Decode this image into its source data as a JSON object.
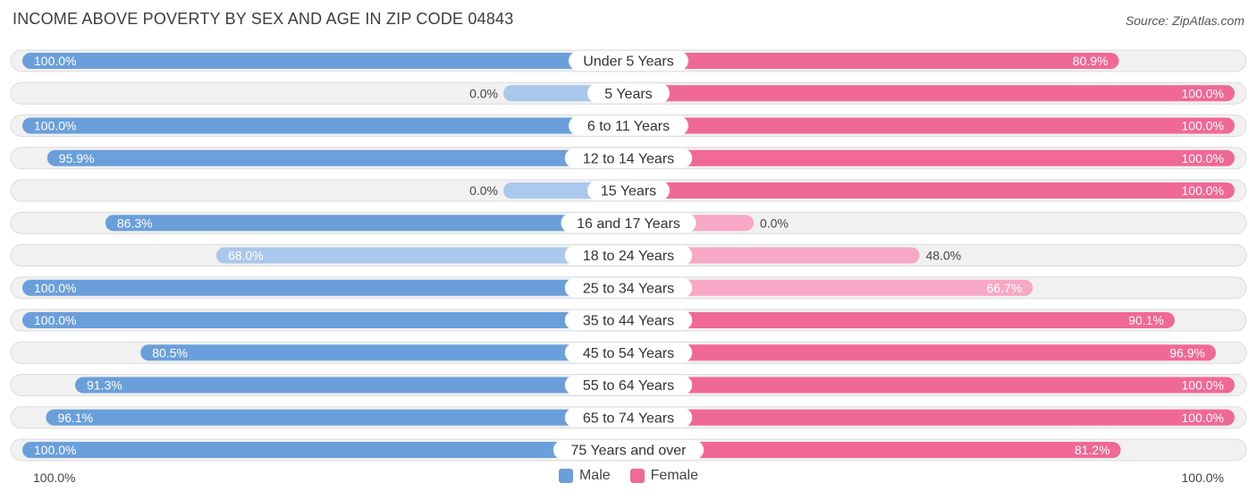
{
  "chart_data": {
    "type": "bar",
    "orientation": "diverging-horizontal",
    "title": "INCOME ABOVE POVERTY BY SEX AND AGE IN ZIP CODE 04843",
    "source": "Source: ZipAtlas.com",
    "categories": [
      "Under 5 Years",
      "5 Years",
      "6 to 11 Years",
      "12 to 14 Years",
      "15 Years",
      "16 and 17 Years",
      "18 to 24 Years",
      "25 to 34 Years",
      "35 to 44 Years",
      "45 to 54 Years",
      "55 to 64 Years",
      "65 to 74 Years",
      "75 Years and over"
    ],
    "series": [
      {
        "name": "Male",
        "values": [
          100.0,
          0.0,
          100.0,
          95.9,
          0.0,
          86.3,
          68.0,
          100.0,
          100.0,
          80.5,
          91.3,
          96.1,
          100.0
        ],
        "labels": [
          "100.0%",
          "0.0%",
          "100.0%",
          "95.9%",
          "0.0%",
          "86.3%",
          "68.0%",
          "100.0%",
          "100.0%",
          "80.5%",
          "91.3%",
          "96.1%",
          "100.0%"
        ]
      },
      {
        "name": "Female",
        "values": [
          80.9,
          100.0,
          100.0,
          100.0,
          100.0,
          0.0,
          48.0,
          66.7,
          90.1,
          96.9,
          100.0,
          100.0,
          81.2
        ],
        "labels": [
          "80.9%",
          "100.0%",
          "100.0%",
          "100.0%",
          "100.0%",
          "0.0%",
          "48.0%",
          "66.7%",
          "90.1%",
          "96.9%",
          "100.0%",
          "100.0%",
          "81.2%"
        ]
      }
    ],
    "xlim": [
      0,
      100
    ],
    "axis_left_label": "100.0%",
    "axis_right_label": "100.0%",
    "legend_position": "bottom-center"
  },
  "colors": {
    "male": "#6a9fdb",
    "male_light": "#aac8ec",
    "female": "#f06896",
    "female_light": "#f7a8c4",
    "track": "#f1f1f1",
    "track_border": "#dcdcdc"
  }
}
